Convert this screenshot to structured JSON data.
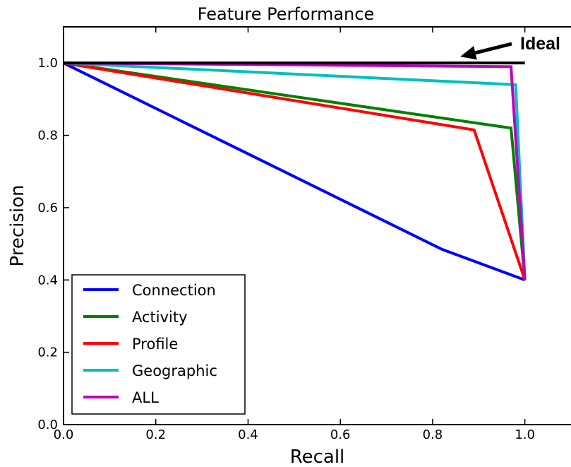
{
  "chart_data": {
    "type": "line",
    "title": "Feature Performance",
    "xlabel": "Recall",
    "ylabel": "Precision",
    "xlim": [
      0.0,
      1.1
    ],
    "ylim": [
      0.0,
      1.1
    ],
    "xticks": [
      {
        "value": 0.0,
        "label": "0.0"
      },
      {
        "value": 0.2,
        "label": "0.2"
      },
      {
        "value": 0.4,
        "label": "0.4"
      },
      {
        "value": 0.6,
        "label": "0.6"
      },
      {
        "value": 0.8,
        "label": "0.8"
      },
      {
        "value": 1.0,
        "label": "1.0"
      }
    ],
    "yticks": [
      {
        "value": 0.0,
        "label": "0.0"
      },
      {
        "value": 0.2,
        "label": "0.2"
      },
      {
        "value": 0.4,
        "label": "0.4"
      },
      {
        "value": 0.6,
        "label": "0.6"
      },
      {
        "value": 0.8,
        "label": "0.8"
      },
      {
        "value": 1.0,
        "label": "1.0"
      }
    ],
    "grid": false,
    "legend_position": "lower-left",
    "series": [
      {
        "name": "Connection",
        "color": "#0000ff",
        "x": [
          0.0,
          0.82,
          1.0
        ],
        "y": [
          1.0,
          0.485,
          0.4
        ]
      },
      {
        "name": "Activity",
        "color": "#008000",
        "x": [
          0.0,
          0.97,
          1.0
        ],
        "y": [
          1.0,
          0.82,
          0.4
        ]
      },
      {
        "name": "Profile",
        "color": "#ff0000",
        "x": [
          0.0,
          0.89,
          1.0
        ],
        "y": [
          1.0,
          0.815,
          0.4
        ]
      },
      {
        "name": "Geographic",
        "color": "#00bfbf",
        "x": [
          0.0,
          0.98,
          1.0
        ],
        "y": [
          1.0,
          0.94,
          0.4
        ]
      },
      {
        "name": "ALL",
        "color": "#bf00bf",
        "x": [
          0.0,
          0.97,
          1.0
        ],
        "y": [
          1.0,
          0.99,
          0.4
        ]
      }
    ],
    "reference_line": {
      "x": [
        0.0,
        1.0
      ],
      "y": [
        1.0,
        1.0
      ],
      "color": "#000000"
    },
    "annotation": {
      "text": "Ideal",
      "arrow_target": {
        "x": 0.86,
        "y": 1.0
      },
      "arrow_color": "#000000"
    }
  }
}
